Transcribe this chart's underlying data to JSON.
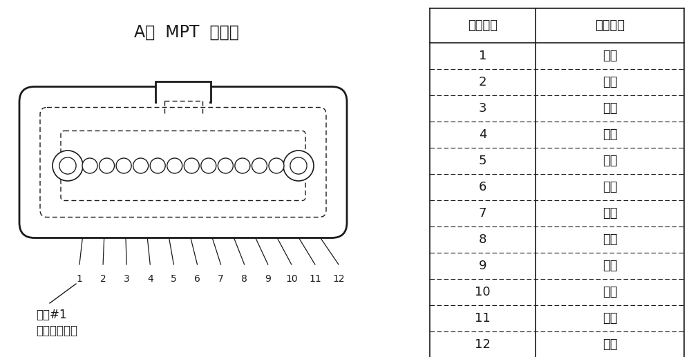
{
  "title": "A侧  MPT  针输出",
  "table_header": [
    "插芯位置",
    "光纤代号"
  ],
  "table_rows": [
    [
      "1",
      "蓝色"
    ],
    [
      "2",
      "橙色"
    ],
    [
      "3",
      "绿色"
    ],
    [
      "4",
      "棕色"
    ],
    [
      "5",
      "灰色"
    ],
    [
      "6",
      "白色"
    ],
    [
      "7",
      "红色"
    ],
    [
      "8",
      "黑色"
    ],
    [
      "9",
      "黄色"
    ],
    [
      "10",
      "紫色"
    ],
    [
      "11",
      "粉色"
    ],
    [
      "12",
      "青色"
    ]
  ],
  "label_pos1_line1": "位置#1",
  "label_pos1_line2": "（蓝色光纤）",
  "fiber_numbers": [
    "1",
    "2",
    "3",
    "4",
    "5",
    "6",
    "7",
    "8",
    "9",
    "10",
    "11",
    "12"
  ],
  "bg_color": "#ffffff",
  "line_color": "#1a1a1a",
  "font_size_title": 17,
  "font_size_table": 13,
  "font_size_labels": 12,
  "font_size_numbers": 10
}
